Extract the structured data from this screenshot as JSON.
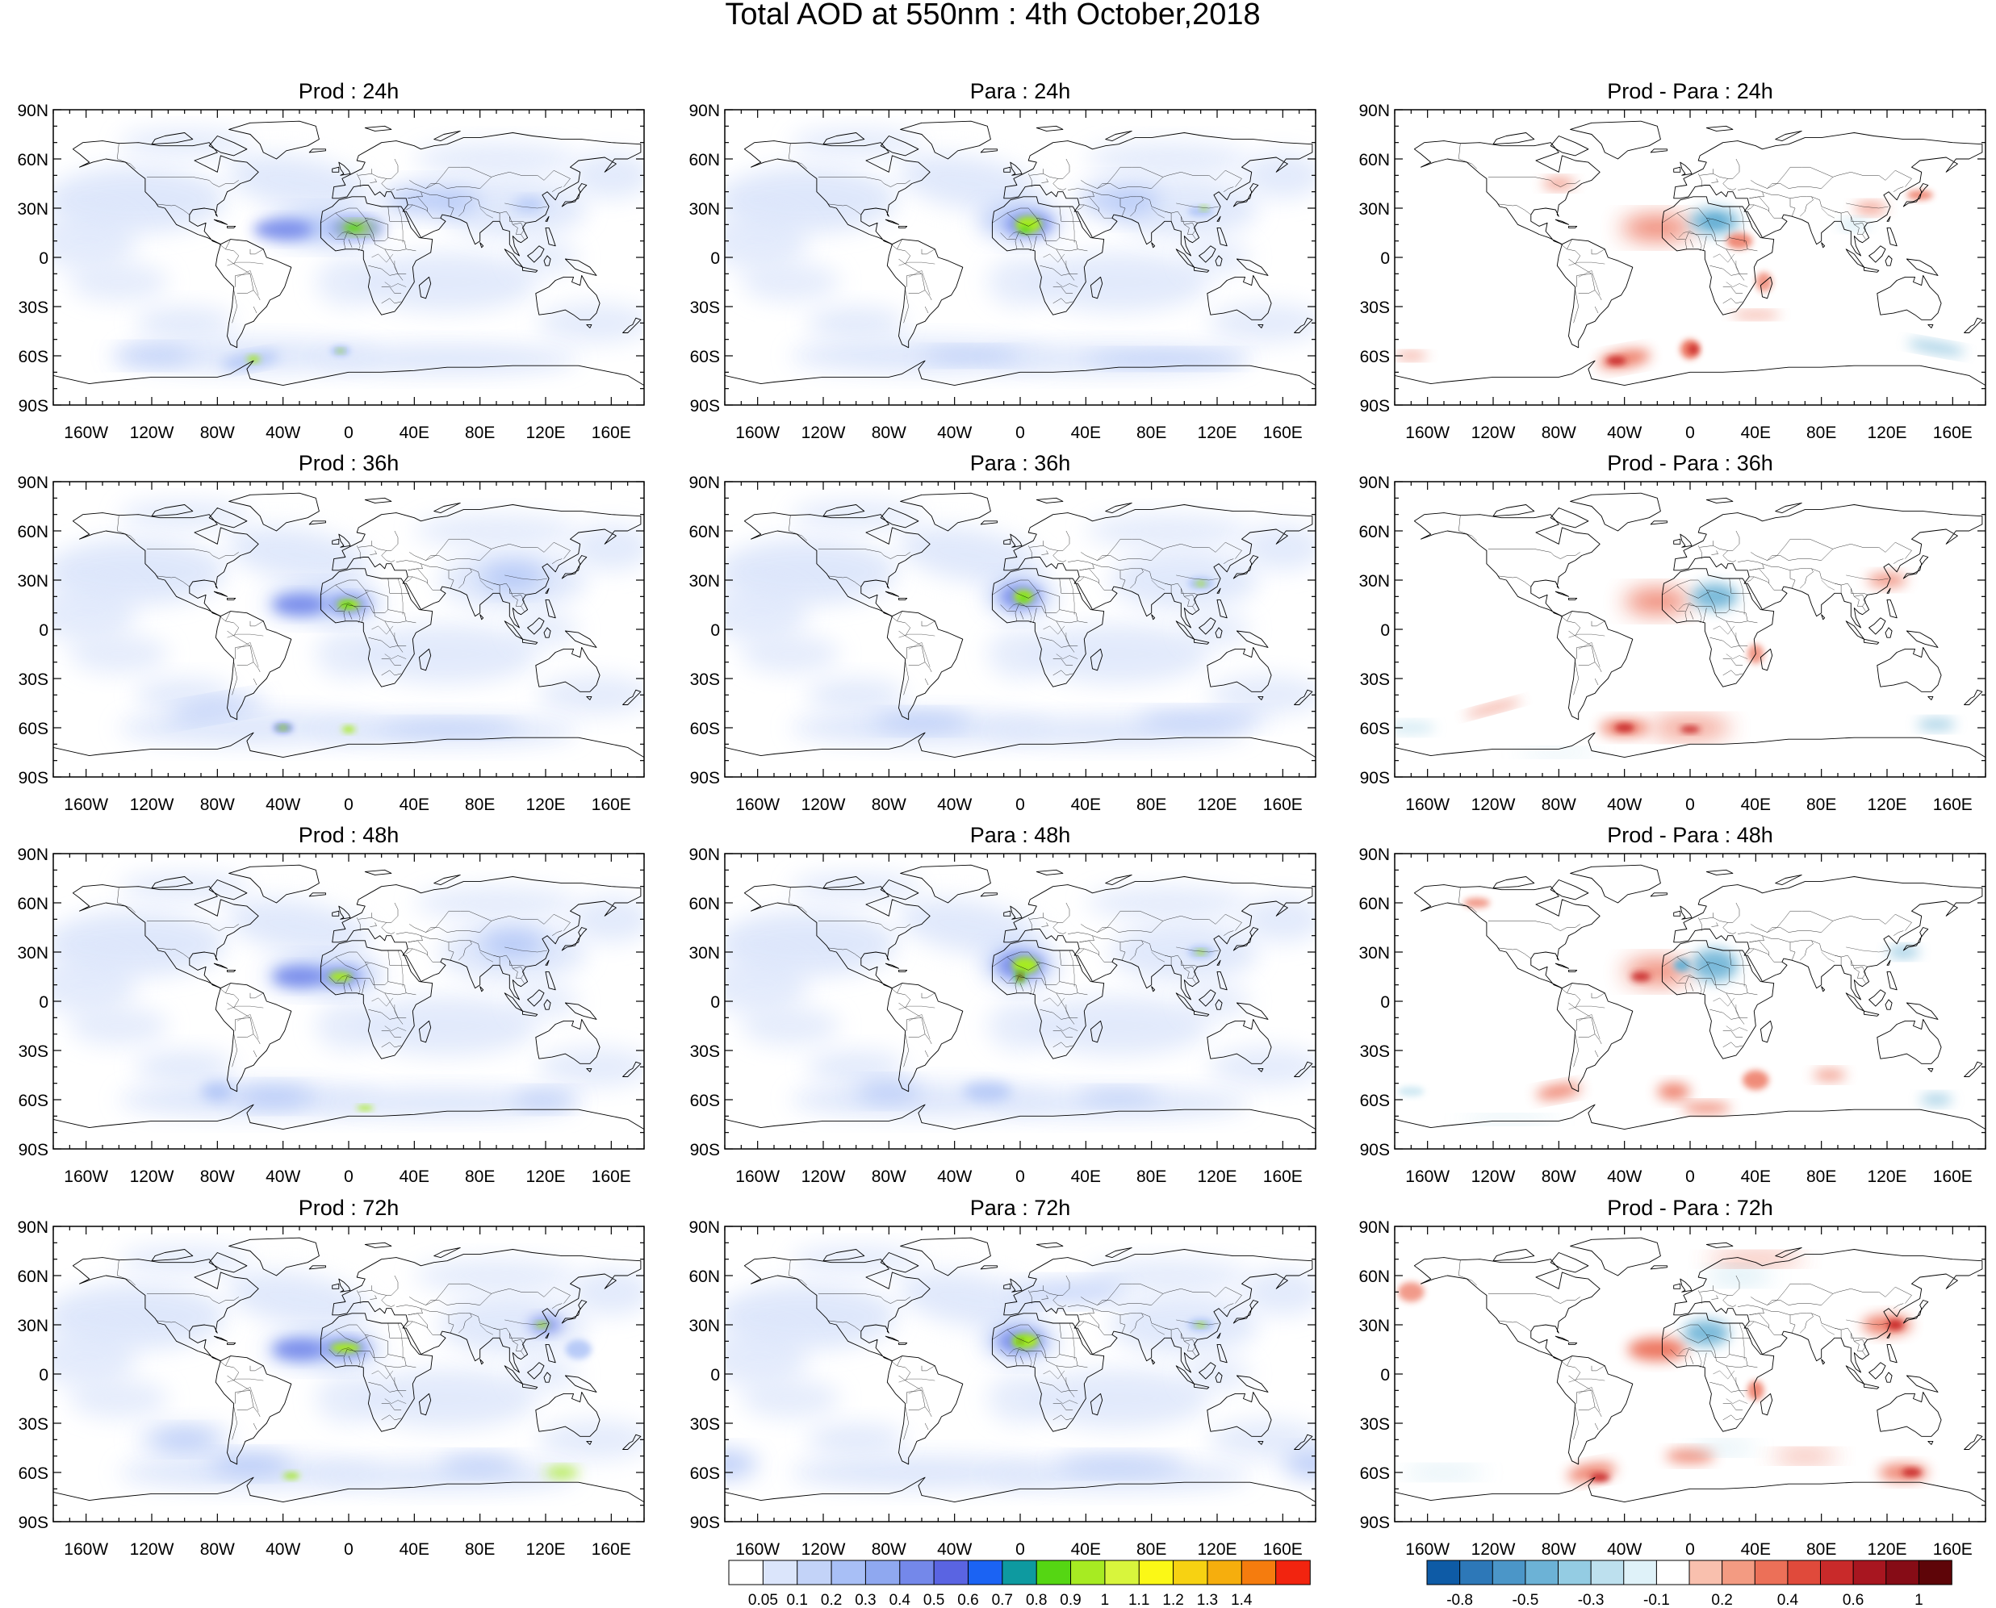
{
  "title": "Total AOD at 550nm : 4th October,2018",
  "lat_labels": [
    "90N",
    "60N",
    "30N",
    "0",
    "30S",
    "60S",
    "90S"
  ],
  "lon_labels": [
    "160W",
    "120W",
    "80W",
    "40W",
    "0",
    "40E",
    "80E",
    "120E",
    "160E"
  ],
  "panels": [
    {
      "title": "Prod : 24h",
      "kind": "aod"
    },
    {
      "title": "Para : 24h",
      "kind": "aod"
    },
    {
      "title": "Prod - Para : 24h",
      "kind": "diff"
    },
    {
      "title": "Prod : 36h",
      "kind": "aod"
    },
    {
      "title": "Para : 36h",
      "kind": "aod"
    },
    {
      "title": "Prod - Para : 36h",
      "kind": "diff"
    },
    {
      "title": "Prod : 48h",
      "kind": "aod"
    },
    {
      "title": "Para : 48h",
      "kind": "aod"
    },
    {
      "title": "Prod - Para : 48h",
      "kind": "diff"
    },
    {
      "title": "Prod : 72h",
      "kind": "aod"
    },
    {
      "title": "Para : 72h",
      "kind": "aod"
    },
    {
      "title": "Prod - Para : 72h",
      "kind": "diff"
    }
  ],
  "aod_colorbar": {
    "labels": [
      "0.05",
      "0.1",
      "0.2",
      "0.3",
      "0.4",
      "0.5",
      "0.6",
      "0.7",
      "0.8",
      "0.9",
      "1",
      "1.1",
      "1.2",
      "1.3",
      "1.4"
    ],
    "colors": [
      "#ffffff",
      "#dbe5fb",
      "#c3d3f8",
      "#a8bff6",
      "#8fa8f0",
      "#7488ea",
      "#5a64e2",
      "#1b63f3",
      "#0e9aa0",
      "#55d613",
      "#a7eb22",
      "#d8f53c",
      "#fbf816",
      "#f7d212",
      "#f6ae0d",
      "#f57c0e",
      "#f2240f"
    ]
  },
  "diff_colorbar": {
    "labels": [
      "-0.8",
      "-0.5",
      "-0.3",
      "-0.1",
      "0.2",
      "0.4",
      "0.6",
      "1"
    ],
    "colors": [
      "#0e5ba6",
      "#2d78b8",
      "#4b96c8",
      "#6cb2d6",
      "#94cce3",
      "#bde0ee",
      "#dff2f9",
      "#ffffff",
      "#f9c0ae",
      "#f39b82",
      "#ec7058",
      "#e04a3b",
      "#c92a2a",
      "#a81620",
      "#860c16",
      "#5e0508"
    ]
  },
  "map_colors": {
    "coast": "#000000",
    "aod_low": "#dbe5fb",
    "aod_mid": "#a8bff6",
    "aod_high": "#7488ea",
    "dust_core": "#a7eb22",
    "dust_peak": "#55d613",
    "diff_pos": "#ec7058",
    "diff_pos_strong": "#c92a2a",
    "diff_neg": "#6cb2d6",
    "diff_neg_light": "#bde0ee"
  }
}
